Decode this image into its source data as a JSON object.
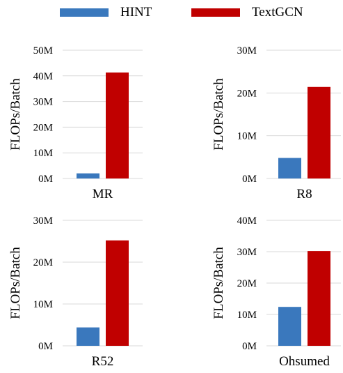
{
  "legend": {
    "items": [
      {
        "label": "HINT",
        "color": "#3a78bd"
      },
      {
        "label": "TextGCN",
        "color": "#c00000"
      }
    ]
  },
  "chart_data": [
    {
      "type": "bar",
      "xlabel": "MR",
      "ylabel": "FLOPs/Batch",
      "categories": [
        "MR"
      ],
      "series": [
        {
          "name": "HINT",
          "values": [
            2000000
          ]
        },
        {
          "name": "TextGCN",
          "values": [
            41300000
          ]
        }
      ],
      "ylim": [
        0,
        50000000
      ],
      "ticks": [
        {
          "v": 0,
          "label": "0M"
        },
        {
          "v": 10000000,
          "label": "10M"
        },
        {
          "v": 20000000,
          "label": "20M"
        },
        {
          "v": 30000000,
          "label": "30M"
        },
        {
          "v": 40000000,
          "label": "40M"
        },
        {
          "v": 50000000,
          "label": "50M"
        }
      ],
      "grid": true
    },
    {
      "type": "bar",
      "xlabel": "R8",
      "ylabel": "FLOPs/Batch",
      "categories": [
        "R8"
      ],
      "series": [
        {
          "name": "HINT",
          "values": [
            4800000
          ]
        },
        {
          "name": "TextGCN",
          "values": [
            21400000
          ]
        }
      ],
      "ylim": [
        0,
        30000000
      ],
      "ticks": [
        {
          "v": 0,
          "label": "0M"
        },
        {
          "v": 10000000,
          "label": "10M"
        },
        {
          "v": 20000000,
          "label": "20M"
        },
        {
          "v": 30000000,
          "label": "30M"
        }
      ],
      "grid": true
    },
    {
      "type": "bar",
      "xlabel": "R52",
      "ylabel": "FLOPs/Batch",
      "categories": [
        "R52"
      ],
      "series": [
        {
          "name": "HINT",
          "values": [
            4400000
          ]
        },
        {
          "name": "TextGCN",
          "values": [
            25200000
          ]
        }
      ],
      "ylim": [
        0,
        30000000
      ],
      "ticks": [
        {
          "v": 0,
          "label": "0M"
        },
        {
          "v": 10000000,
          "label": "10M"
        },
        {
          "v": 20000000,
          "label": "20M"
        },
        {
          "v": 30000000,
          "label": "30M"
        }
      ],
      "grid": true
    },
    {
      "type": "bar",
      "xlabel": "Ohsumed",
      "ylabel": "FLOPs/Batch",
      "categories": [
        "Ohsumed"
      ],
      "series": [
        {
          "name": "HINT",
          "values": [
            12400000
          ]
        },
        {
          "name": "TextGCN",
          "values": [
            30200000
          ]
        }
      ],
      "ylim": [
        0,
        40000000
      ],
      "ticks": [
        {
          "v": 0,
          "label": "0M"
        },
        {
          "v": 10000000,
          "label": "10M"
        },
        {
          "v": 20000000,
          "label": "20M"
        },
        {
          "v": 30000000,
          "label": "30M"
        },
        {
          "v": 40000000,
          "label": "40M"
        }
      ],
      "grid": true
    }
  ]
}
